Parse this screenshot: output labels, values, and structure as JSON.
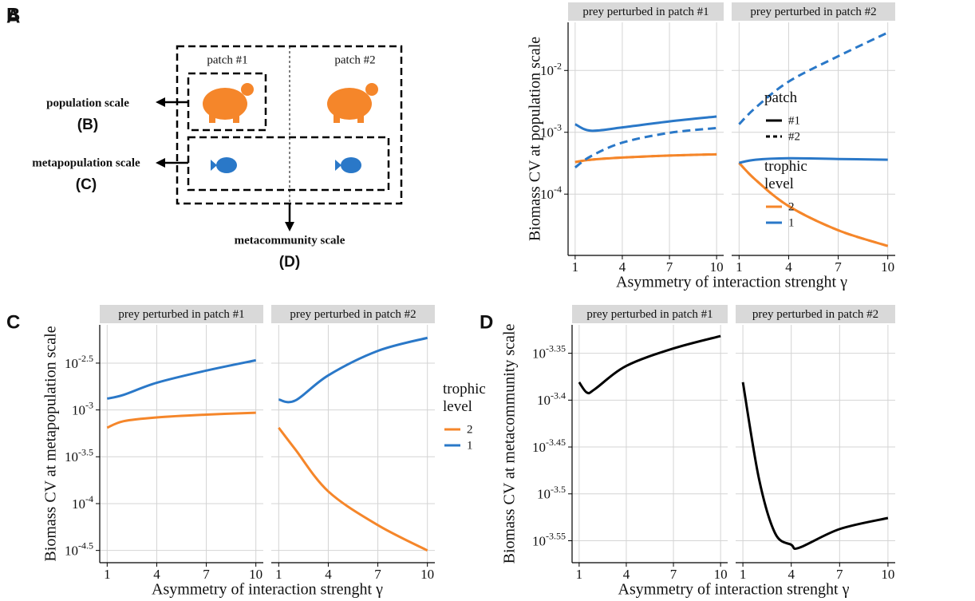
{
  "panel_a": {
    "label": "A",
    "patches": [
      "patch #1",
      "patch #2"
    ],
    "scales": [
      {
        "name": "population scale",
        "ref": "(B)"
      },
      {
        "name": "metapopulation scale",
        "ref": "(C)"
      },
      {
        "name": "metacommunity scale",
        "ref": "(D)"
      }
    ]
  },
  "chart_data": [
    {
      "type": "line",
      "panel": "B",
      "y_title": "Biomass CV at population scale",
      "x_title": "Asymmetry of interaction strenght γ",
      "log_y": true,
      "grid": true,
      "xlim": [
        0.55,
        10.45
      ],
      "xticks": [
        1,
        4,
        7,
        10
      ],
      "ylim": [
        1.02e-05,
        0.06
      ],
      "yticks": [
        {
          "value": 0.0001,
          "label": "10-4"
        },
        {
          "value": 0.001,
          "label": "10-3"
        },
        {
          "value": 0.01,
          "label": "10-2"
        }
      ],
      "legend": [
        {
          "title": "patch",
          "items": [
            {
              "label": "#1",
              "color": "#000000",
              "dash": "solid"
            },
            {
              "label": "#2",
              "color": "#000000",
              "dash": "dashed"
            }
          ]
        },
        {
          "title": "trophic level",
          "items": [
            {
              "label": "2",
              "color": "#f5862a"
            },
            {
              "label": "1",
              "color": "#2a78c8"
            }
          ]
        }
      ],
      "facets": [
        {
          "title": "prey perturbed in patch #1",
          "x": [
            1,
            2,
            4,
            7,
            10
          ],
          "series": [
            {
              "trophic_level": "2",
              "patch": "#2",
              "values": [
                0.00033,
                0.00036,
                0.00039,
                0.00042,
                0.00044
              ]
            },
            {
              "trophic_level": "2",
              "patch": "#1",
              "values": [
                0.00033,
                0.00036,
                0.00039,
                0.00042,
                0.00044
              ]
            },
            {
              "trophic_level": "1",
              "patch": "#2",
              "values": [
                0.00027,
                0.00041,
                0.00068,
                0.00098,
                0.00117
              ]
            },
            {
              "trophic_level": "1",
              "patch": "#1",
              "values": [
                0.00135,
                0.00106,
                0.0012,
                0.0015,
                0.0018
              ]
            }
          ]
        },
        {
          "title": "prey perturbed in patch #2",
          "x": [
            1,
            2,
            4,
            7,
            10
          ],
          "series": [
            {
              "trophic_level": "2",
              "patch": "#2",
              "values": [
                0.00032,
                0.00017,
                6.4e-05,
                2.6e-05,
                1.45e-05
              ]
            },
            {
              "trophic_level": "2",
              "patch": "#1",
              "values": [
                0.00032,
                0.00017,
                6.4e-05,
                2.6e-05,
                1.45e-05
              ]
            },
            {
              "trophic_level": "1",
              "patch": "#2",
              "values": [
                0.00135,
                0.0025,
                0.0066,
                0.017,
                0.041
              ]
            },
            {
              "trophic_level": "1",
              "patch": "#1",
              "values": [
                0.00032,
                0.00036,
                0.00038,
                0.00037,
                0.00036
              ]
            }
          ]
        }
      ]
    },
    {
      "type": "line",
      "panel": "C",
      "y_title": "Biomass CV at metapopulation scale",
      "x_title": "Asymmetry of interaction strenght γ",
      "log_y": true,
      "grid": true,
      "xlim": [
        0.55,
        10.45
      ],
      "xticks": [
        1,
        4,
        7,
        10
      ],
      "ylim": [
        2.34e-05,
        0.0081
      ],
      "yticks": [
        {
          "value": 3.162e-05,
          "label": "10-4.5"
        },
        {
          "value": 0.0001,
          "label": "10-4"
        },
        {
          "value": 0.0003162,
          "label": "10-3.5"
        },
        {
          "value": 0.001,
          "label": "10-3"
        },
        {
          "value": 0.003162,
          "label": "10-2.5"
        }
      ],
      "legend": [
        {
          "title": "trophic level",
          "items": [
            {
              "label": "2",
              "color": "#f5862a"
            },
            {
              "label": "1",
              "color": "#2a78c8"
            }
          ]
        }
      ],
      "facets": [
        {
          "title": "prey perturbed in patch #1",
          "x": [
            1,
            2,
            4,
            7,
            10
          ],
          "series": [
            {
              "trophic_level": "2",
              "values": [
                0.000646,
                0.000759,
                0.000832,
                0.000891,
                0.000933
              ]
            },
            {
              "trophic_level": "1",
              "values": [
                0.00132,
                0.00145,
                0.00195,
                0.00263,
                0.00339
              ]
            }
          ]
        },
        {
          "title": "prey perturbed in patch #2",
          "x": [
            1,
            2,
            4,
            7,
            10
          ],
          "series": [
            {
              "trophic_level": "2",
              "values": [
                0.000646,
                0.00038,
                0.000135,
                5.89e-05,
                3.16e-05
              ]
            },
            {
              "trophic_level": "1",
              "values": [
                0.00129,
                0.00126,
                0.00234,
                0.00427,
                0.00589
              ]
            }
          ]
        }
      ]
    },
    {
      "type": "line",
      "panel": "D",
      "y_title": "Biomass CV at metacommunity scale",
      "x_title": "Asymmetry of interaction strenght γ",
      "log_y": true,
      "grid": true,
      "xlim": [
        0.55,
        10.45
      ],
      "xticks": [
        1,
        4,
        7,
        10
      ],
      "ylim": [
        0.000267,
        0.000479
      ],
      "yticks": [
        {
          "value": 0.0002818,
          "label": "10-3.55"
        },
        {
          "value": 0.0003162,
          "label": "10-3.5"
        },
        {
          "value": 0.0003548,
          "label": "10-3.45"
        },
        {
          "value": 0.0003981,
          "label": "10-3.4"
        },
        {
          "value": 0.0004467,
          "label": "10-3.35"
        }
      ],
      "facets": [
        {
          "title": "prey perturbed in patch #1",
          "x": [
            1,
            1.5,
            2,
            4,
            7,
            10
          ],
          "series": [
            {
              "color": "#000000",
              "values": [
                0.000416,
                0.0004055,
                0.000409,
                0.000433,
                0.000452,
                0.000466
              ]
            }
          ]
        },
        {
          "title": "prey perturbed in patch #2",
          "x": [
            1,
            2,
            3,
            4,
            4.5,
            7,
            10
          ],
          "series": [
            {
              "color": "#000000",
              "values": [
                0.000416,
                0.000328,
                0.000287,
                0.000279,
                0.000277,
                0.00029,
                0.000298
              ]
            }
          ]
        }
      ]
    }
  ]
}
